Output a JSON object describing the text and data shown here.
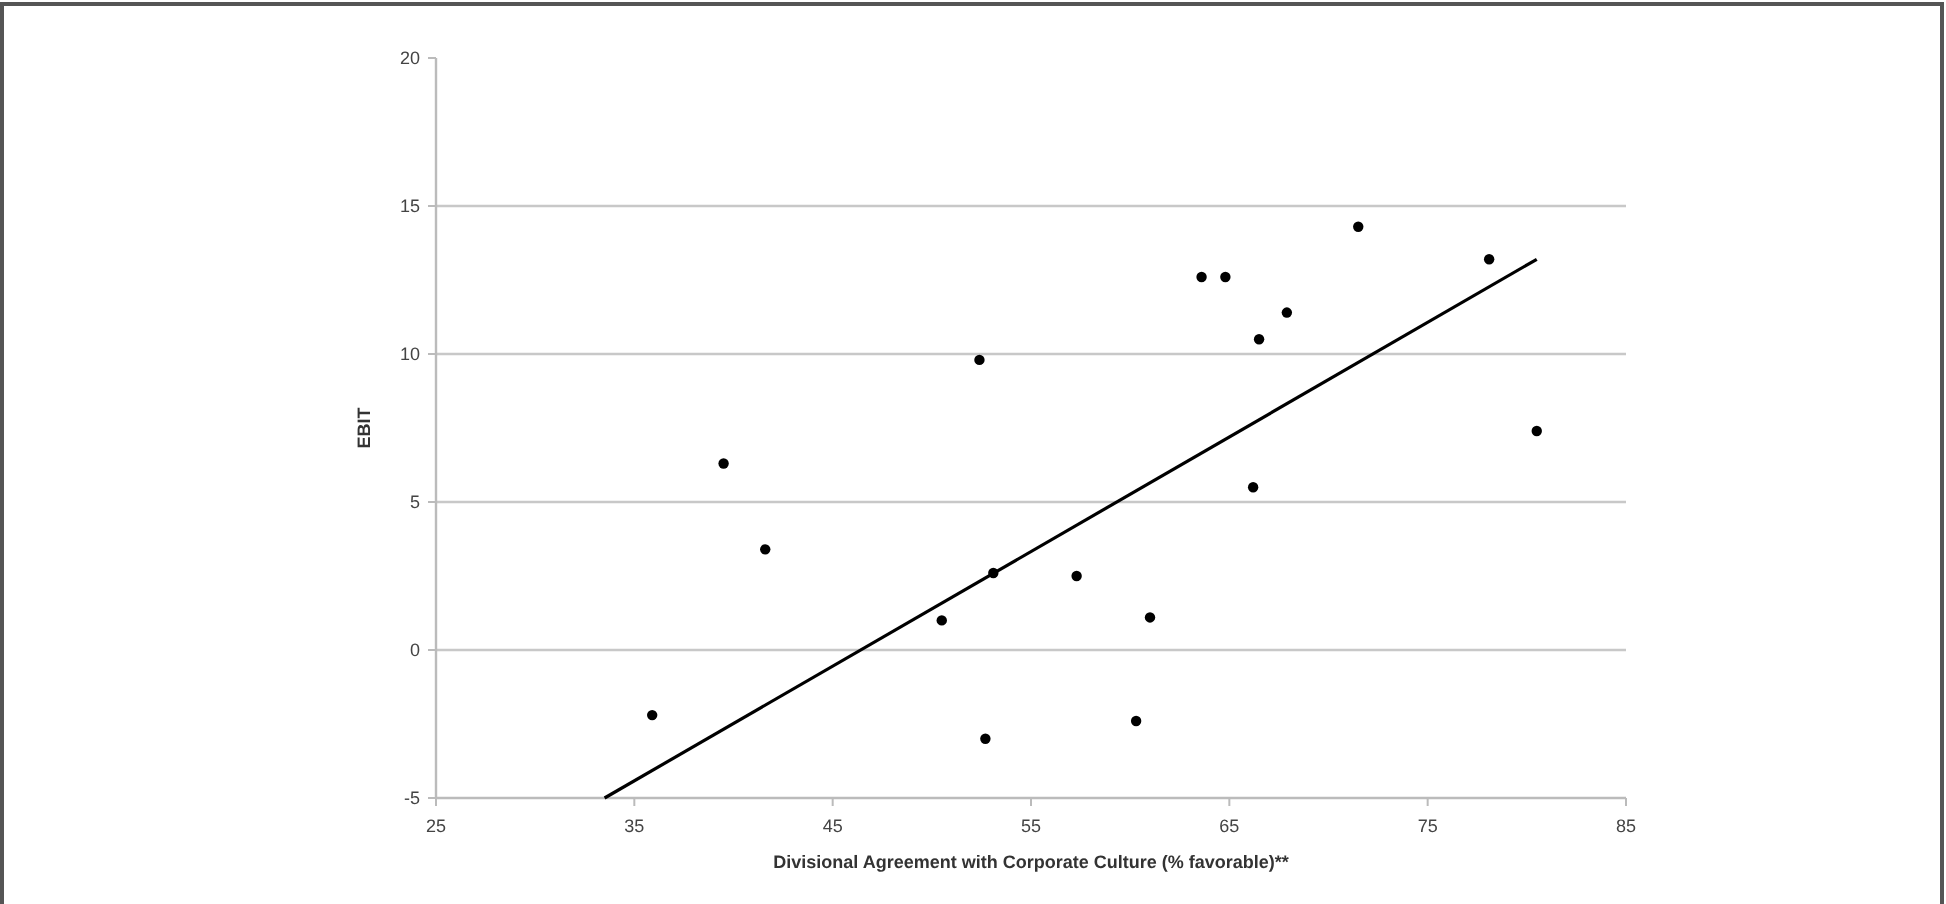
{
  "chart_data": {
    "type": "scatter",
    "xlabel": "Divisional Agreement with Corporate Culture (% favorable)**",
    "ylabel": "EBIT",
    "xlim": [
      25,
      85
    ],
    "xticks": [
      25,
      35,
      45,
      55,
      65,
      75,
      85
    ],
    "ylim": [
      -5,
      20
    ],
    "yticks": [
      -5,
      0,
      5,
      10,
      15,
      20
    ],
    "grid": "y",
    "marker": "circle",
    "series": [
      {
        "color": "#000000",
        "x": [
          35.9,
          39.5,
          41.6,
          50.5,
          52.4,
          52.7,
          53.1,
          57.3,
          61.0,
          60.3,
          63.6,
          64.8,
          66.2,
          66.5,
          67.9,
          71.5,
          78.1,
          80.5
        ],
        "values": [
          -2.2,
          6.3,
          3.4,
          1.0,
          9.8,
          -3.0,
          2.6,
          2.5,
          1.1,
          -2.4,
          12.6,
          12.6,
          5.5,
          10.5,
          11.4,
          14.3,
          13.2,
          7.4
        ]
      },
      {
        "type": "line",
        "color": "#000000",
        "line_style": "solid",
        "marker": "none",
        "x": [
          33.5,
          80.5
        ],
        "values": [
          -5,
          13.2
        ]
      }
    ]
  }
}
